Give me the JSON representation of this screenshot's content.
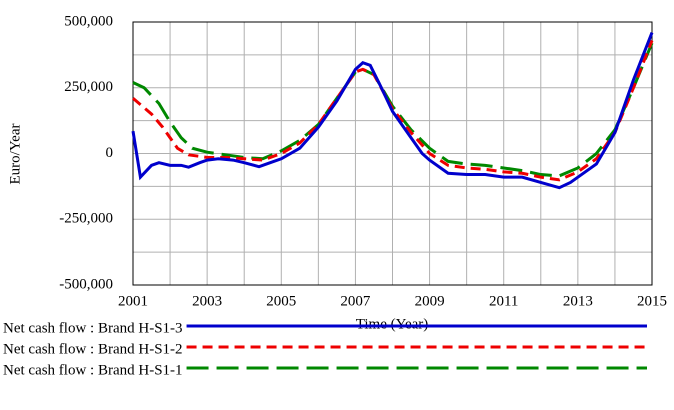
{
  "chart_data": {
    "type": "line",
    "x_label": "Time (Year)",
    "y_label": "Euro/Year",
    "xlim": [
      2001,
      2015
    ],
    "xticks": [
      2001,
      2003,
      2005,
      2007,
      2009,
      2011,
      2013,
      2015
    ],
    "x_minor_grid": [
      2002,
      2004,
      2006,
      2008,
      2010,
      2012,
      2014
    ],
    "ylim": [
      -500000,
      500000
    ],
    "yticks": [
      {
        "value": -500000,
        "label": "-500,000"
      },
      {
        "value": -250000,
        "label": "-250,000"
      },
      0,
      {
        "value": 250000,
        "label": "250,000"
      },
      {
        "value": 500000,
        "label": "500,000"
      }
    ],
    "y_minor_grid": [
      -375000,
      -125000,
      125000,
      375000
    ],
    "grid": true,
    "series": [
      {
        "name": "Net cash flow : Brand H-S1-3",
        "color": "#0000cc",
        "style": "solid",
        "x": [
          2001,
          2001.2,
          2001.5,
          2001.7,
          2002,
          2002.3,
          2002.5,
          2002.8,
          2003,
          2003.3,
          2003.7,
          2004,
          2004.4,
          2004.7,
          2005,
          2005.5,
          2006,
          2006.5,
          2007,
          2007.2,
          2007.4,
          2007.7,
          2008,
          2008.5,
          2008.8,
          2009,
          2009.5,
          2010,
          2010.5,
          2011,
          2011.5,
          2012,
          2012.5,
          2012.8,
          2013,
          2013.5,
          2014,
          2014.5,
          2015
        ],
        "values": [
          85000,
          -90000,
          -45000,
          -35000,
          -45000,
          -45000,
          -52000,
          -35000,
          -25000,
          -20000,
          -25000,
          -35000,
          -50000,
          -35000,
          -20000,
          20000,
          100000,
          200000,
          320000,
          345000,
          335000,
          250000,
          160000,
          60000,
          0,
          -25000,
          -75000,
          -80000,
          -80000,
          -90000,
          -90000,
          -110000,
          -130000,
          -110000,
          -90000,
          -40000,
          80000,
          280000,
          460000
        ]
      },
      {
        "name": "Net cash flow : Brand H-S1-2",
        "color": "#ee0000",
        "style": "dashed",
        "x": [
          2001,
          2001.5,
          2001.8,
          2002.2,
          2002.5,
          2003,
          2003.5,
          2004,
          2004.5,
          2005,
          2005.5,
          2006,
          2006.5,
          2007,
          2007.2,
          2007.5,
          2008,
          2008.5,
          2009,
          2009.5,
          2010,
          2010.5,
          2011,
          2011.5,
          2012,
          2012.5,
          2013,
          2013.5,
          2014,
          2014.5,
          2015
        ],
        "values": [
          210000,
          150000,
          100000,
          20000,
          -5000,
          -15000,
          -15000,
          -20000,
          -25000,
          0,
          40000,
          110000,
          210000,
          310000,
          320000,
          300000,
          170000,
          80000,
          0,
          -45000,
          -55000,
          -60000,
          -70000,
          -75000,
          -90000,
          -100000,
          -70000,
          -20000,
          80000,
          250000,
          430000
        ]
      },
      {
        "name": "Net cash flow : Brand H-S1-1",
        "color": "#008800",
        "style": "long-dashed",
        "x": [
          2001,
          2001.3,
          2001.7,
          2002,
          2002.3,
          2002.6,
          2003,
          2003.5,
          2004,
          2004.5,
          2005,
          2005.5,
          2006,
          2006.5,
          2007,
          2007.2,
          2007.5,
          2008,
          2008.5,
          2009,
          2009.5,
          2010,
          2010.5,
          2011,
          2011.5,
          2012,
          2012.5,
          2013,
          2013.5,
          2014,
          2014.5,
          2015
        ],
        "values": [
          270000,
          250000,
          190000,
          120000,
          60000,
          20000,
          5000,
          -5000,
          -15000,
          -20000,
          10000,
          50000,
          110000,
          210000,
          310000,
          320000,
          300000,
          180000,
          90000,
          20000,
          -30000,
          -40000,
          -45000,
          -55000,
          -65000,
          -80000,
          -85000,
          -55000,
          0,
          90000,
          250000,
          420000
        ]
      }
    ]
  }
}
